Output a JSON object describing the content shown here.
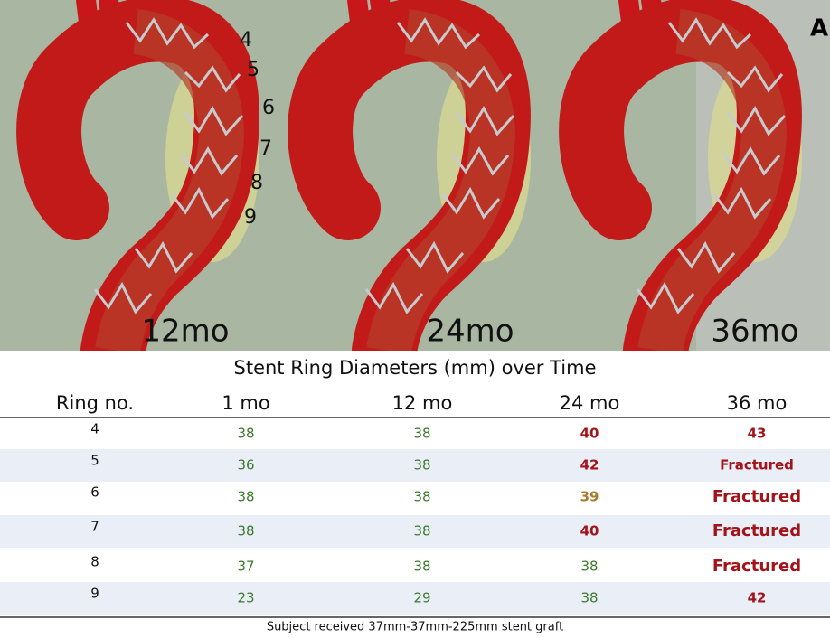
{
  "figure": {
    "panel_label": "A",
    "ring_labels": [
      "4",
      "5",
      "6",
      "7",
      "8",
      "9"
    ],
    "time_labels": [
      "12mo",
      "24mo",
      "36mo"
    ]
  },
  "table": {
    "title": "Stent Ring Diameters (mm) over Time",
    "header": [
      "Ring no.",
      "1 mo",
      "12 mo",
      "24 mo",
      "36 mo"
    ],
    "rows": [
      {
        "ring": 4,
        "cells": [
          {
            "text": 38,
            "color": "#3d7a2c"
          },
          {
            "text": 38,
            "color": "#3d7a2c"
          },
          {
            "text": 40,
            "color": "#a3141a"
          },
          {
            "text": 43,
            "color": "#a3141a"
          }
        ]
      },
      {
        "ring": 5,
        "cells": [
          {
            "text": 36,
            "color": "#3d7a2c"
          },
          {
            "text": 38,
            "color": "#3d7a2c"
          },
          {
            "text": 42,
            "color": "#a3141a"
          },
          {
            "text": "Fractured",
            "color": "#a3141a"
          }
        ]
      },
      {
        "ring": 6,
        "cells": [
          {
            "text": 38,
            "color": "#3d7a2c"
          },
          {
            "text": 38,
            "color": "#3d7a2c"
          },
          {
            "text": 39,
            "color": "#a87a2a"
          },
          {
            "text": "Fractured",
            "color": "#a3141a"
          }
        ]
      },
      {
        "ring": 7,
        "cells": [
          {
            "text": 38,
            "color": "#3d7a2c"
          },
          {
            "text": 38,
            "color": "#3d7a2c"
          },
          {
            "text": 40,
            "color": "#a3141a"
          },
          {
            "text": "Fractured",
            "color": "#a3141a"
          }
        ]
      },
      {
        "ring": 8,
        "cells": [
          {
            "text": 37,
            "color": "#3d7a2c"
          },
          {
            "text": 38,
            "color": "#3d7a2c"
          },
          {
            "text": 38,
            "color": "#3d7a2c"
          },
          {
            "text": "Fractured",
            "color": "#a3141a"
          }
        ]
      },
      {
        "ring": 9,
        "cells": [
          {
            "text": 23,
            "color": "#3d7a2c"
          },
          {
            "text": 29,
            "color": "#3d7a2c"
          },
          {
            "text": 38,
            "color": "#3d7a2c"
          },
          {
            "text": 42,
            "color": "#a3141a"
          }
        ]
      }
    ],
    "footnote": "Subject received 37mm-37mm-225mm stent graft"
  }
}
